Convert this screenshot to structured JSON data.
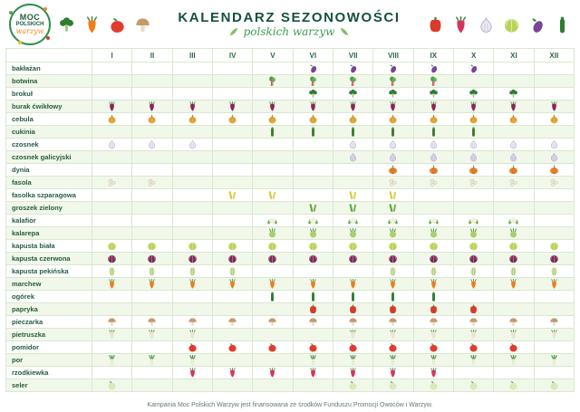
{
  "header": {
    "logo": {
      "line1": "MOC",
      "line2": "POLSKICH",
      "line3": "warzyw"
    },
    "title": "KALENDARZ SEZONOWOŚCI",
    "subtitle": "polskich warzyw",
    "deco_left": [
      {
        "icon": "broccoli-icon",
        "shape": "broccoli",
        "color": "#2e7d32"
      },
      {
        "icon": "carrot-icon",
        "shape": "root",
        "color": "#ef7d1a"
      },
      {
        "icon": "tomato-icon",
        "shape": "round",
        "color": "#e23b2e"
      },
      {
        "icon": "mushroom-icon",
        "shape": "mushroom",
        "color": "#c49a6c"
      }
    ],
    "deco_right": [
      {
        "icon": "pepper-icon",
        "shape": "pepper",
        "color": "#d93a2b"
      },
      {
        "icon": "radish-icon",
        "shape": "root",
        "color": "#d6365c"
      },
      {
        "icon": "garlic-icon",
        "shape": "garlic",
        "color": "#ece9f4"
      },
      {
        "icon": "cabbage-icon",
        "shape": "cabbage",
        "color": "#b8d255"
      },
      {
        "icon": "eggplant-icon",
        "shape": "eggplant",
        "color": "#7b4397"
      },
      {
        "icon": "cucumber-icon",
        "shape": "stick",
        "color": "#2e7d32"
      }
    ]
  },
  "chart_data": {
    "type": "heatmap",
    "title": "KALENDARZ SEZONOWOŚCI polskich warzyw",
    "x_labels": [
      "I",
      "II",
      "III",
      "IV",
      "V",
      "VI",
      "VII",
      "VIII",
      "IX",
      "X",
      "XI",
      "XII"
    ],
    "legend": "vegetable icon shown in a month cell = vegetable in season that month",
    "rows": [
      {
        "name": "bakłażan",
        "icon": "eggplant-icon",
        "shape": "eggplant",
        "color": "#7b4397",
        "months": [
          6,
          7,
          8,
          9,
          10
        ]
      },
      {
        "name": "botwina",
        "icon": "beet-greens-icon",
        "shape": "botwina",
        "color": "#c0334d",
        "months": [
          5,
          6,
          7,
          8,
          9
        ]
      },
      {
        "name": "brokuł",
        "icon": "broccoli-icon",
        "shape": "broccoli",
        "color": "#2e7d32",
        "months": [
          6,
          7,
          8,
          9,
          10,
          11
        ]
      },
      {
        "name": "burak ćwikłowy",
        "icon": "beetroot-icon",
        "shape": "root",
        "color": "#8e2458",
        "months": [
          1,
          2,
          3,
          4,
          5,
          6,
          7,
          8,
          9,
          10,
          11,
          12
        ]
      },
      {
        "name": "cebula",
        "icon": "onion-icon",
        "shape": "onion",
        "color": "#e2a93b",
        "months": [
          1,
          2,
          3,
          4,
          5,
          6,
          7,
          8,
          9,
          10,
          11,
          12
        ]
      },
      {
        "name": "cukinia",
        "icon": "zucchini-icon",
        "shape": "stick",
        "color": "#3f7d2c",
        "months": [
          5,
          6,
          7,
          8,
          9,
          10
        ]
      },
      {
        "name": "czosnek",
        "icon": "garlic-icon",
        "shape": "garlic",
        "color": "#ece9f4",
        "months": [
          1,
          2,
          3,
          7,
          8,
          9,
          10,
          11,
          12
        ]
      },
      {
        "name": "czosnek galicyjski",
        "icon": "garlic-icon",
        "shape": "garlic",
        "color": "#d9cfe8",
        "months": [
          7,
          8,
          9,
          10,
          11,
          12
        ]
      },
      {
        "name": "dynia",
        "icon": "pumpkin-icon",
        "shape": "pumpkin",
        "color": "#e8832c",
        "months": [
          8,
          9,
          10,
          11,
          12
        ]
      },
      {
        "name": "fasola",
        "icon": "beans-icon",
        "shape": "beans",
        "color": "#efe9da",
        "months": [
          1,
          2,
          8,
          9,
          10,
          11,
          12
        ]
      },
      {
        "name": "fasolka szparagowa",
        "icon": "green-bean-icon",
        "shape": "pod",
        "color": "#d9c938",
        "months": [
          4,
          5,
          7,
          8
        ]
      },
      {
        "name": "groszek zielony",
        "icon": "pea-pod-icon",
        "shape": "pod",
        "color": "#5aa63e",
        "months": [
          6,
          7,
          8
        ]
      },
      {
        "name": "kalafior",
        "icon": "cauliflower-icon",
        "shape": "cauliflower",
        "color": "#f3efdf",
        "months": [
          5,
          6,
          7,
          8,
          9,
          10,
          11
        ]
      },
      {
        "name": "kalarepa",
        "icon": "kohlrabi-icon",
        "shape": "kohlrabi",
        "color": "#a9cf6f",
        "months": [
          5,
          6,
          7,
          8,
          9,
          10,
          11
        ]
      },
      {
        "name": "kapusta biała",
        "icon": "white-cabbage-icon",
        "shape": "cabbage",
        "color": "#b8d255",
        "months": [
          1,
          2,
          3,
          4,
          5,
          6,
          7,
          8,
          9,
          10,
          11,
          12
        ]
      },
      {
        "name": "kapusta czerwona",
        "icon": "red-cabbage-icon",
        "shape": "cabbage",
        "color": "#7c2a55",
        "months": [
          1,
          2,
          3,
          4,
          5,
          6,
          7,
          8,
          9,
          10,
          11,
          12
        ]
      },
      {
        "name": "kapusta pekińska",
        "icon": "napa-cabbage-icon",
        "shape": "pekinska",
        "color": "#cfe3a0",
        "months": [
          1,
          2,
          3,
          4,
          8,
          9,
          10,
          11,
          12
        ]
      },
      {
        "name": "marchew",
        "icon": "carrot-icon",
        "shape": "root",
        "color": "#ef7d1a",
        "months": [
          1,
          2,
          3,
          4,
          5,
          6,
          7,
          8,
          9,
          10,
          11,
          12
        ]
      },
      {
        "name": "ogórek",
        "icon": "cucumber-icon",
        "shape": "stick",
        "color": "#2e7d32",
        "months": [
          5,
          6,
          7,
          8,
          9
        ]
      },
      {
        "name": "papryka",
        "icon": "pepper-icon",
        "shape": "pepper",
        "color": "#d93a2b",
        "months": [
          6,
          7,
          8,
          9,
          10
        ]
      },
      {
        "name": "pieczarka",
        "icon": "mushroom-icon",
        "shape": "mushroom",
        "color": "#c49a6c",
        "months": [
          1,
          2,
          3,
          4,
          5,
          6,
          7,
          8,
          9,
          10,
          11,
          12
        ]
      },
      {
        "name": "pietruszka",
        "icon": "parsley-root-icon",
        "shape": "root",
        "color": "#ece5cf",
        "months": [
          1,
          2,
          3,
          7,
          8,
          9,
          10,
          11,
          12
        ]
      },
      {
        "name": "pomidor",
        "icon": "tomato-icon",
        "shape": "round",
        "color": "#e23b2e",
        "months": [
          3,
          4,
          5,
          6,
          7,
          8,
          9,
          10,
          11
        ]
      },
      {
        "name": "por",
        "icon": "leek-icon",
        "shape": "leek",
        "color": "#eef2dc",
        "months": [
          1,
          2,
          3,
          6,
          7,
          8,
          9,
          10,
          11,
          12
        ]
      },
      {
        "name": "rzodkiewka",
        "icon": "radish-icon",
        "shape": "root",
        "color": "#d6365c",
        "months": [
          3,
          4,
          5,
          6,
          7,
          8,
          9
        ]
      },
      {
        "name": "seler",
        "icon": "celeriac-icon",
        "shape": "round",
        "color": "#dfe6bb",
        "months": [
          1,
          7,
          8,
          9,
          10,
          11,
          12
        ]
      }
    ]
  },
  "footer": {
    "text": "Kampania Moc Polskich Warzyw jest finansowana ze środków Funduszu Promocji Owoców i Warzyw."
  }
}
